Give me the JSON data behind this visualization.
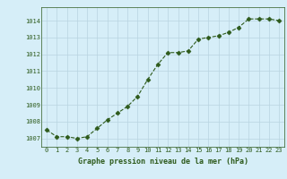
{
  "x": [
    0,
    1,
    2,
    3,
    4,
    5,
    6,
    7,
    8,
    9,
    10,
    11,
    12,
    13,
    14,
    15,
    16,
    17,
    18,
    19,
    20,
    21,
    22,
    23
  ],
  "y": [
    1007.5,
    1007.1,
    1007.1,
    1007.0,
    1007.1,
    1007.6,
    1008.1,
    1008.5,
    1008.9,
    1009.5,
    1010.5,
    1011.4,
    1012.1,
    1012.1,
    1012.2,
    1012.9,
    1013.0,
    1013.1,
    1013.3,
    1013.6,
    1014.1,
    1014.1,
    1014.1,
    1014.0
  ],
  "line_color": "#2d5a1b",
  "marker_color": "#2d5a1b",
  "bg_color": "#d6eef8",
  "grid_color": "#b8d4e0",
  "xlabel": "Graphe pression niveau de la mer (hPa)",
  "ylim": [
    1006.5,
    1014.8
  ],
  "yticks": [
    1007,
    1008,
    1009,
    1010,
    1011,
    1012,
    1013,
    1014
  ],
  "xticks": [
    0,
    1,
    2,
    3,
    4,
    5,
    6,
    7,
    8,
    9,
    10,
    11,
    12,
    13,
    14,
    15,
    16,
    17,
    18,
    19,
    20,
    21,
    22,
    23
  ],
  "xlabel_color": "#2d5a1b",
  "tick_color": "#2d5a1b"
}
